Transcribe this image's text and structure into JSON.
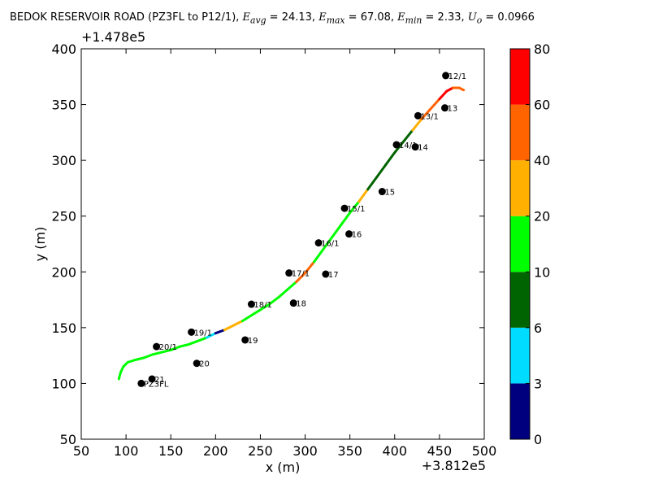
{
  "chart_data": {
    "type": "scatter",
    "title_parts": {
      "road": "BEDOK RESERVOIR ROAD (PZ3FL to P12/1), ",
      "e_avg_label": "E",
      "e_avg_sub": "avg",
      "e_avg_val": " = 24.13, ",
      "e_max_label": "E",
      "e_max_sub": "max",
      "e_max_val": " = 67.08, ",
      "e_min_label": "E",
      "e_min_sub": "min",
      "e_min_val": " = 2.33, ",
      "u_label": "U",
      "u_sub": "o",
      "u_val": " = 0.0966"
    },
    "xlabel": "x (m)",
    "ylabel": "y (m)",
    "x_offset_label": "+3.812e5",
    "y_offset_label": "+1.478e5",
    "xlim": [
      50,
      500
    ],
    "ylim": [
      50,
      400
    ],
    "xticks": [
      "50",
      "100",
      "150",
      "200",
      "250",
      "300",
      "350",
      "400",
      "450",
      "500"
    ],
    "yticks": [
      "50",
      "100",
      "150",
      "200",
      "250",
      "300",
      "350",
      "400"
    ],
    "points": [
      {
        "label": "12/1",
        "x": 457,
        "y": 376
      },
      {
        "label": "13",
        "x": 456,
        "y": 347
      },
      {
        "label": "13/1",
        "x": 426,
        "y": 340
      },
      {
        "label": "14/1",
        "x": 402,
        "y": 314
      },
      {
        "label": "14",
        "x": 423,
        "y": 312
      },
      {
        "label": "15",
        "x": 386,
        "y": 272
      },
      {
        "label": "15/1",
        "x": 344,
        "y": 257
      },
      {
        "label": "16",
        "x": 349,
        "y": 234
      },
      {
        "label": "16/1",
        "x": 315,
        "y": 226
      },
      {
        "label": "17/1",
        "x": 282,
        "y": 199
      },
      {
        "label": "17",
        "x": 323,
        "y": 198
      },
      {
        "label": "18",
        "x": 287,
        "y": 172
      },
      {
        "label": "18/1",
        "x": 240,
        "y": 171
      },
      {
        "label": "19/1",
        "x": 173,
        "y": 146
      },
      {
        "label": "19",
        "x": 233,
        "y": 139
      },
      {
        "label": "20/1",
        "x": 134,
        "y": 133
      },
      {
        "label": "20",
        "x": 179,
        "y": 118
      },
      {
        "label": "21",
        "x": 129,
        "y": 104
      },
      {
        "label": "PZ3FL",
        "x": 117,
        "y": 100
      }
    ],
    "road_path": [
      [
        92,
        104
      ],
      [
        94,
        110
      ],
      [
        97,
        115
      ],
      [
        102,
        119
      ],
      [
        110,
        121
      ],
      [
        120,
        123
      ],
      [
        130,
        126
      ],
      [
        140,
        128
      ],
      [
        150,
        130
      ],
      [
        160,
        133
      ],
      [
        170,
        135
      ],
      [
        180,
        138
      ],
      [
        190,
        141
      ],
      [
        200,
        145
      ],
      [
        210,
        148
      ],
      [
        220,
        152
      ],
      [
        230,
        156
      ],
      [
        240,
        161
      ],
      [
        250,
        166
      ],
      [
        260,
        171
      ],
      [
        270,
        177
      ],
      [
        280,
        184
      ],
      [
        290,
        191
      ],
      [
        300,
        199
      ],
      [
        310,
        209
      ],
      [
        320,
        220
      ],
      [
        330,
        231
      ],
      [
        340,
        242
      ],
      [
        350,
        253
      ],
      [
        360,
        263
      ],
      [
        370,
        274
      ],
      [
        380,
        285
      ],
      [
        390,
        296
      ],
      [
        400,
        307
      ],
      [
        410,
        317
      ],
      [
        420,
        327
      ],
      [
        430,
        337
      ],
      [
        440,
        346
      ],
      [
        450,
        355
      ],
      [
        458,
        362
      ],
      [
        465,
        365
      ],
      [
        472,
        365
      ],
      [
        477,
        363
      ]
    ],
    "road_segment_values": [
      15,
      15,
      15,
      15,
      15,
      15,
      15,
      15,
      15,
      15,
      15,
      15,
      4,
      2,
      25,
      25,
      15,
      15,
      15,
      15,
      15,
      15,
      45,
      45,
      15,
      15,
      15,
      15,
      15,
      25,
      8,
      8,
      8,
      8,
      8,
      25,
      45,
      45,
      65,
      65,
      55,
      55
    ],
    "colorbar": {
      "ticks": [
        "0",
        "3",
        "6",
        "10",
        "20",
        "40",
        "60",
        "80"
      ],
      "colors": [
        "#00007f",
        "#00dcff",
        "#006400",
        "#00ff00",
        "#ffb000",
        "#ff6400",
        "#ff0000"
      ]
    }
  }
}
